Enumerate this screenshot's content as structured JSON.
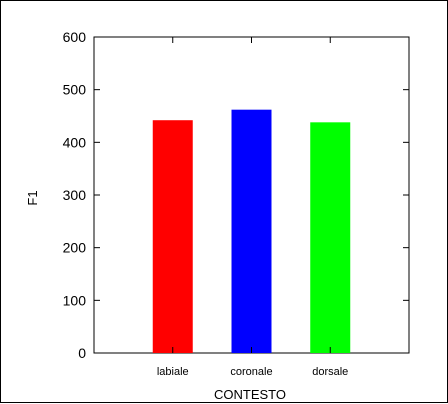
{
  "chart_data": {
    "type": "bar",
    "categories": [
      "labiale",
      "coronale",
      "dorsale"
    ],
    "values": [
      442,
      462,
      438
    ],
    "colors": [
      "#ff0000",
      "#0000ff",
      "#00ff00"
    ],
    "xlabel": "CONTESTO",
    "ylabel": "F1",
    "ylim": [
      0,
      600
    ],
    "yticks": [
      0,
      100,
      200,
      300,
      400,
      500,
      600
    ],
    "grid": false,
    "legend": "none"
  }
}
